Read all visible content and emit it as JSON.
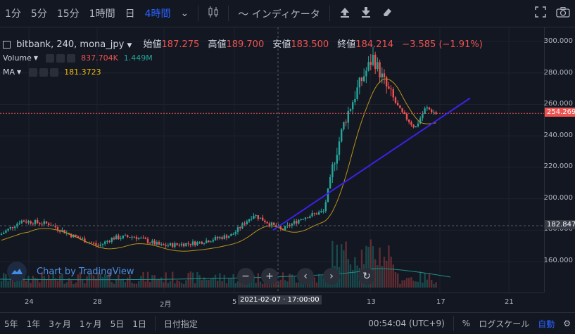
{
  "toolbar": {
    "intervals": [
      "1分",
      "5分",
      "15分",
      "1時間",
      "日",
      "4時間"
    ],
    "active_interval": "4時間",
    "indicator_label": "インディケータ"
  },
  "legend": {
    "symbol": "bitbank, 240, mona_jpy",
    "open_label": "始値",
    "open": "187.275",
    "high_label": "高値",
    "high": "189.700",
    "low_label": "安値",
    "low": "183.500",
    "close_label": "終値",
    "close": "184.214",
    "change": "−3.585 (−1.91%)"
  },
  "volume": {
    "label": "Volume",
    "v1": "837.704K",
    "v2": "1.449M"
  },
  "ma": {
    "label": "MA",
    "value": "181.3723"
  },
  "watermark": "Chart by TradingView",
  "price_axis": {
    "ticks": [
      "300.000",
      "280.000",
      "260.000",
      "240.000",
      "220.000",
      "200.000",
      "180.000",
      "160.000"
    ],
    "current_price": "254.269",
    "cursor_price": "182.847"
  },
  "time_axis": {
    "ticks": [
      "24",
      "28",
      "2月",
      "5",
      "13",
      "17",
      "21"
    ],
    "cursor_time": "2021-02-07 · 17:00:00"
  },
  "bottom": {
    "ranges": [
      "5年",
      "1年",
      "3ヶ月",
      "1ヶ月",
      "5日",
      "1日"
    ],
    "goto": "日付指定",
    "clock": "00:54:04 (UTC+9)",
    "percent": "%",
    "log": "ログスケール",
    "auto": "自動"
  },
  "colors": {
    "up": "#26a69a",
    "down": "#ef5350",
    "ma": "#b8941a",
    "trend": "#3b22e8"
  }
}
